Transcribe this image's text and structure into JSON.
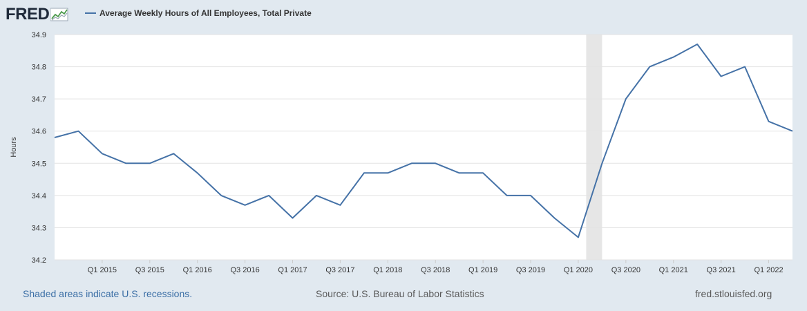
{
  "header": {
    "logo_text": "FRED",
    "legend_label": "Average Weekly Hours of All Employees, Total Private",
    "series_color": "#4572a7"
  },
  "footer": {
    "recession_note": "Shaded areas indicate U.S. recessions.",
    "source": "Source: U.S. Bureau of Labor Statistics",
    "site": "fred.stlouisfed.org"
  },
  "chart_data": {
    "type": "line",
    "title": "",
    "xlabel": "",
    "ylabel": "Hours",
    "ylim": [
      34.2,
      34.9
    ],
    "y_ticks": [
      "34.2",
      "34.3",
      "34.4",
      "34.5",
      "34.6",
      "34.7",
      "34.8",
      "34.9"
    ],
    "x_tick_labels": [
      "Q1 2015",
      "Q3 2015",
      "Q1 2016",
      "Q3 2016",
      "Q1 2017",
      "Q3 2017",
      "Q1 2018",
      "Q3 2018",
      "Q1 2019",
      "Q3 2019",
      "Q1 2020",
      "Q3 2020",
      "Q1 2021",
      "Q3 2021",
      "Q1 2022"
    ],
    "grid": true,
    "recession_shading": [
      {
        "start": "2020-02",
        "end": "2020-04"
      }
    ],
    "series": [
      {
        "name": "Average Weekly Hours of All Employees, Total Private",
        "x": [
          "2014-07",
          "2014-10",
          "2015-01",
          "2015-04",
          "2015-07",
          "2015-10",
          "2016-01",
          "2016-04",
          "2016-07",
          "2016-10",
          "2017-01",
          "2017-04",
          "2017-07",
          "2017-10",
          "2018-01",
          "2018-04",
          "2018-07",
          "2018-10",
          "2019-01",
          "2019-04",
          "2019-07",
          "2019-10",
          "2020-01",
          "2020-04",
          "2020-07",
          "2020-10",
          "2021-01",
          "2021-04",
          "2021-07",
          "2021-10",
          "2022-01",
          "2022-04"
        ],
        "values": [
          34.58,
          34.6,
          34.53,
          34.5,
          34.5,
          34.53,
          34.47,
          34.4,
          34.37,
          34.4,
          34.33,
          34.4,
          34.37,
          34.47,
          34.47,
          34.5,
          34.5,
          34.47,
          34.47,
          34.4,
          34.4,
          34.33,
          34.27,
          34.5,
          34.7,
          34.8,
          34.83,
          34.87,
          34.77,
          34.8,
          34.63,
          34.6
        ]
      }
    ]
  }
}
